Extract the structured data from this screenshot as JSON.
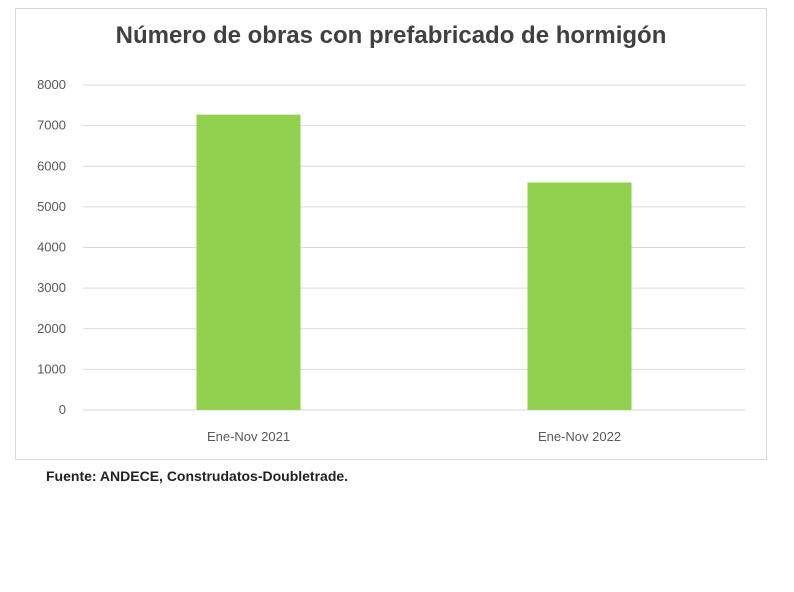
{
  "chart_data": {
    "type": "bar",
    "title": "Número de obras con prefabricado de hormigón",
    "xlabel": "",
    "ylabel": "",
    "categories": [
      "Ene-Nov 2021",
      "Ene-Nov 2022"
    ],
    "values": [
      7270,
      5600
    ],
    "ylim": [
      0,
      8000
    ],
    "yticks": [
      "0",
      "1000",
      "2000",
      "3000",
      "4000",
      "5000",
      "6000",
      "7000",
      "8000"
    ],
    "grid": true,
    "legend": "none",
    "bar_color": "#92d050"
  },
  "source": {
    "text": "Fuente: ANDECE, Construdatos-Doubletrade."
  }
}
